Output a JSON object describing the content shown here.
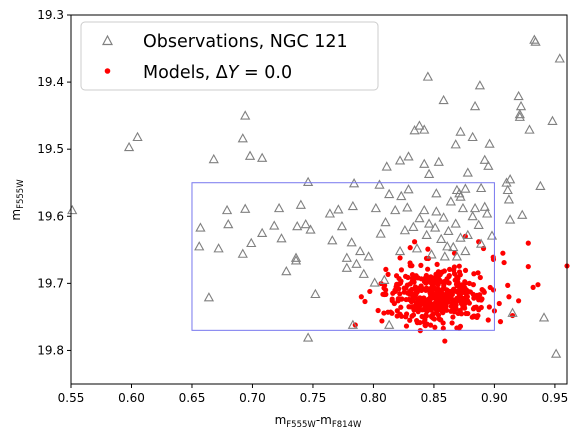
{
  "chart_data": {
    "type": "scatter",
    "title": "",
    "xlabel_main": "m",
    "xlabel_sub1": "F555W",
    "xlabel_mid": "-m",
    "xlabel_sub2": "F814W",
    "ylabel_main": "m",
    "ylabel_sub": "F555W",
    "xlim": [
      0.55,
      0.96
    ],
    "ylim": [
      19.85,
      19.3
    ],
    "y_inverted": true,
    "xticks": [
      "0.55",
      "0.60",
      "0.65",
      "0.70",
      "0.75",
      "0.80",
      "0.85",
      "0.90",
      "0.95"
    ],
    "yticks": [
      "19.3",
      "19.4",
      "19.5",
      "19.6",
      "19.7",
      "19.8"
    ],
    "grid": false,
    "legend_placement": "upper-left",
    "colors": {
      "observations": "#808080",
      "models": "#ff0000",
      "box": "#7777ee"
    },
    "box": {
      "x": [
        0.65,
        0.9
      ],
      "y": [
        19.55,
        19.77
      ]
    },
    "series": [
      {
        "name": "Observations, NGC 121",
        "legend_label": "Observations, NGC 121",
        "marker": "open-triangle",
        "points": [
          [
            0.598,
            19.497
          ],
          [
            0.605,
            19.482
          ],
          [
            0.668,
            19.515
          ],
          [
            0.694,
            19.45
          ],
          [
            0.692,
            19.484
          ],
          [
            0.698,
            19.51
          ],
          [
            0.708,
            19.513
          ],
          [
            0.551,
            19.591
          ],
          [
            0.657,
            19.617
          ],
          [
            0.656,
            19.645
          ],
          [
            0.672,
            19.648
          ],
          [
            0.679,
            19.591
          ],
          [
            0.68,
            19.612
          ],
          [
            0.694,
            19.589
          ],
          [
            0.692,
            19.656
          ],
          [
            0.699,
            19.64
          ],
          [
            0.708,
            19.625
          ],
          [
            0.718,
            19.614
          ],
          [
            0.722,
            19.588
          ],
          [
            0.724,
            19.633
          ],
          [
            0.728,
            19.682
          ],
          [
            0.736,
            19.662
          ],
          [
            0.737,
            19.615
          ],
          [
            0.74,
            19.583
          ],
          [
            0.744,
            19.612
          ],
          [
            0.748,
            19.62
          ],
          [
            0.736,
            19.666
          ],
          [
            0.746,
            19.549
          ],
          [
            0.766,
            19.636
          ],
          [
            0.764,
            19.596
          ],
          [
            0.771,
            19.59
          ],
          [
            0.774,
            19.615
          ],
          [
            0.778,
            19.662
          ],
          [
            0.778,
            19.677
          ],
          [
            0.782,
            19.639
          ],
          [
            0.783,
            19.585
          ],
          [
            0.786,
            19.671
          ],
          [
            0.789,
            19.652
          ],
          [
            0.792,
            19.686
          ],
          [
            0.796,
            19.66
          ],
          [
            0.802,
            19.588
          ],
          [
            0.806,
            19.626
          ],
          [
            0.81,
            19.609
          ],
          [
            0.813,
            19.567
          ],
          [
            0.818,
            19.591
          ],
          [
            0.822,
            19.652
          ],
          [
            0.826,
            19.621
          ],
          [
            0.828,
            19.587
          ],
          [
            0.833,
            19.616
          ],
          [
            0.836,
            19.648
          ],
          [
            0.838,
            19.603
          ],
          [
            0.842,
            19.591
          ],
          [
            0.844,
            19.628
          ],
          [
            0.846,
            19.611
          ],
          [
            0.848,
            19.657
          ],
          [
            0.852,
            19.593
          ],
          [
            0.856,
            19.634
          ],
          [
            0.858,
            19.602
          ],
          [
            0.862,
            19.622
          ],
          [
            0.864,
            19.578
          ],
          [
            0.866,
            19.646
          ],
          [
            0.868,
            19.611
          ],
          [
            0.872,
            19.632
          ],
          [
            0.874,
            19.588
          ],
          [
            0.876,
            19.652
          ],
          [
            0.878,
            19.628
          ],
          [
            0.882,
            19.6
          ],
          [
            0.884,
            19.588
          ],
          [
            0.887,
            19.613
          ],
          [
            0.889,
            19.641
          ],
          [
            0.892,
            19.586
          ],
          [
            0.894,
            19.596
          ],
          [
            0.898,
            19.629
          ],
          [
            0.851,
            19.617
          ],
          [
            0.859,
            19.66
          ],
          [
            0.869,
            19.66
          ],
          [
            0.861,
            19.645
          ],
          [
            0.823,
            19.57
          ],
          [
            0.829,
            19.56
          ],
          [
            0.805,
            19.553
          ],
          [
            0.784,
            19.551
          ],
          [
            0.852,
            19.566
          ],
          [
            0.872,
            19.571
          ],
          [
            0.889,
            19.558
          ],
          [
            0.811,
            19.526
          ],
          [
            0.822,
            19.517
          ],
          [
            0.834,
            19.472
          ],
          [
            0.838,
            19.465
          ],
          [
            0.842,
            19.471
          ],
          [
            0.846,
            19.537
          ],
          [
            0.854,
            19.519
          ],
          [
            0.858,
            19.427
          ],
          [
            0.868,
            19.493
          ],
          [
            0.872,
            19.474
          ],
          [
            0.878,
            19.535
          ],
          [
            0.882,
            19.482
          ],
          [
            0.884,
            19.436
          ],
          [
            0.888,
            19.405
          ],
          [
            0.892,
            19.516
          ],
          [
            0.895,
            19.525
          ],
          [
            0.896,
            19.492
          ],
          [
            0.91,
            19.55
          ],
          [
            0.913,
            19.545
          ],
          [
            0.92,
            19.421
          ],
          [
            0.921,
            19.452
          ],
          [
            0.922,
            19.436
          ],
          [
            0.929,
            19.471
          ],
          [
            0.933,
            19.337
          ],
          [
            0.934,
            19.34
          ],
          [
            0.948,
            19.458
          ],
          [
            0.951,
            19.805
          ],
          [
            0.954,
            19.365
          ],
          [
            0.938,
            19.555
          ],
          [
            0.941,
            19.751
          ],
          [
            0.915,
            19.744
          ],
          [
            0.913,
            19.605
          ],
          [
            0.923,
            19.598
          ],
          [
            0.912,
            19.575
          ],
          [
            0.911,
            19.561
          ],
          [
            0.921,
            19.448
          ],
          [
            0.845,
            19.392
          ],
          [
            0.746,
            19.781
          ],
          [
            0.813,
            19.762
          ],
          [
            0.752,
            19.716
          ],
          [
            0.783,
            19.762
          ],
          [
            0.664,
            19.721
          ],
          [
            0.809,
            19.695
          ],
          [
            0.801,
            19.699
          ],
          [
            0.869,
            19.561
          ],
          [
            0.876,
            19.559
          ],
          [
            0.871,
            19.566
          ],
          [
            0.842,
            19.522
          ],
          [
            0.829,
            19.511
          ]
        ]
      },
      {
        "name": "Models, ΔY = 0.0",
        "legend_label_pre": "Models, Δ",
        "legend_label_italic": "Y",
        "legend_label_post": " = 0.0",
        "marker": "filled-circle",
        "cluster": {
          "x_center": 0.852,
          "x_sd": 0.021,
          "x_min": 0.8,
          "x_max": 0.905,
          "y_center": 19.718,
          "y_sd": 0.021,
          "y_min": 19.64,
          "y_max": 19.785,
          "count": 420
        },
        "points": [
          [
            0.96,
            19.674
          ],
          [
            0.936,
            19.702
          ],
          [
            0.932,
            19.706
          ],
          [
            0.928,
            19.675
          ],
          [
            0.928,
            19.64
          ],
          [
            0.92,
            19.726
          ],
          [
            0.915,
            19.748
          ],
          [
            0.912,
            19.72
          ],
          [
            0.911,
            19.703
          ],
          [
            0.904,
            19.73
          ],
          [
            0.908,
            19.669
          ],
          [
            0.905,
            19.757
          ],
          [
            0.899,
            19.661
          ],
          [
            0.907,
            19.655
          ],
          [
            0.891,
            19.648
          ],
          [
            0.887,
            19.638
          ],
          [
            0.876,
            19.63
          ],
          [
            0.867,
            19.655
          ],
          [
            0.845,
            19.649
          ],
          [
            0.834,
            19.638
          ],
          [
            0.822,
            19.662
          ],
          [
            0.797,
            19.712
          ],
          [
            0.793,
            19.727
          ],
          [
            0.785,
            19.762
          ],
          [
            0.79,
            19.72
          ],
          [
            0.807,
            19.756
          ],
          [
            0.822,
            19.746
          ],
          [
            0.83,
            19.755
          ],
          [
            0.843,
            19.763
          ],
          [
            0.859,
            19.786
          ],
          [
            0.855,
            19.754
          ],
          [
            0.81,
            19.716
          ],
          [
            0.812,
            19.743
          ],
          [
            0.883,
            19.722
          ],
          [
            0.9,
            19.741
          ]
        ]
      }
    ]
  }
}
